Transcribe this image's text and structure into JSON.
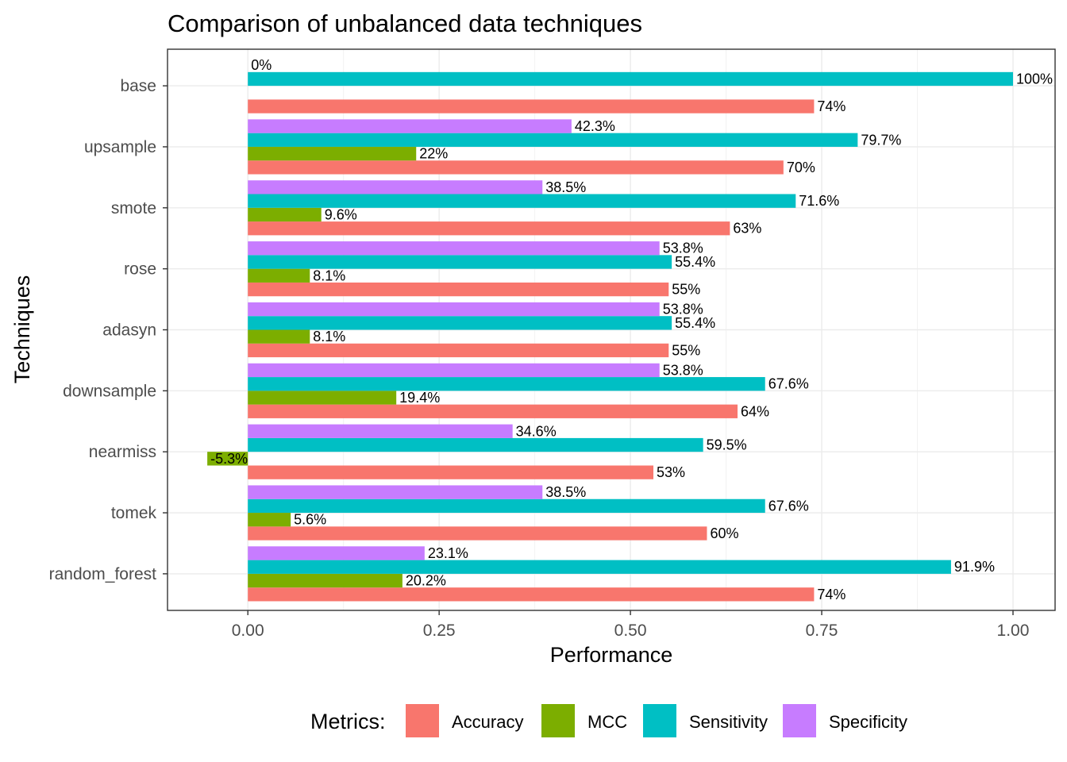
{
  "chart_data": {
    "type": "bar",
    "orientation": "horizontal",
    "title": "Comparison of unbalanced data techniques",
    "xlabel": "Performance",
    "ylabel": "Techniques",
    "xlim": [
      -0.105,
      1.055
    ],
    "x_ticks": [
      0.0,
      0.25,
      0.5,
      0.75,
      1.0
    ],
    "x_tick_labels": [
      "0.00",
      "0.25",
      "0.50",
      "0.75",
      "1.00"
    ],
    "grid": true,
    "legend_title": "Metrics:",
    "legend_position": "bottom",
    "categories": [
      "random_forest",
      "tomek",
      "nearmiss",
      "downsample",
      "adasyn",
      "rose",
      "smote",
      "upsample",
      "base"
    ],
    "series": [
      {
        "name": "Accuracy",
        "color": "#F8766D",
        "values": [
          0.74,
          0.6,
          0.53,
          0.64,
          0.55,
          0.55,
          0.63,
          0.7,
          0.74
        ],
        "labels": [
          "74%",
          "60%",
          "53%",
          "64%",
          "55%",
          "55%",
          "63%",
          "70%",
          "74%"
        ]
      },
      {
        "name": "MCC",
        "color": "#7CAE00",
        "values": [
          0.202,
          0.056,
          -0.053,
          0.194,
          0.081,
          0.081,
          0.096,
          0.22,
          null
        ],
        "labels": [
          "20.2%",
          "5.6%",
          "-5.3%",
          "19.4%",
          "8.1%",
          "8.1%",
          "9.6%",
          "22%",
          null
        ]
      },
      {
        "name": "Sensitivity",
        "color": "#00BFC4",
        "values": [
          0.919,
          0.676,
          0.595,
          0.676,
          0.554,
          0.554,
          0.716,
          0.797,
          1.0
        ],
        "labels": [
          "91.9%",
          "67.6%",
          "59.5%",
          "67.6%",
          "55.4%",
          "55.4%",
          "71.6%",
          "79.7%",
          "100%"
        ]
      },
      {
        "name": "Specificity",
        "color": "#C77CFF",
        "values": [
          0.231,
          0.385,
          0.346,
          0.538,
          0.538,
          0.538,
          0.385,
          0.423,
          0.0
        ],
        "labels": [
          "23.1%",
          "38.5%",
          "34.6%",
          "53.8%",
          "53.8%",
          "53.8%",
          "38.5%",
          "42.3%",
          "0%"
        ]
      }
    ]
  }
}
